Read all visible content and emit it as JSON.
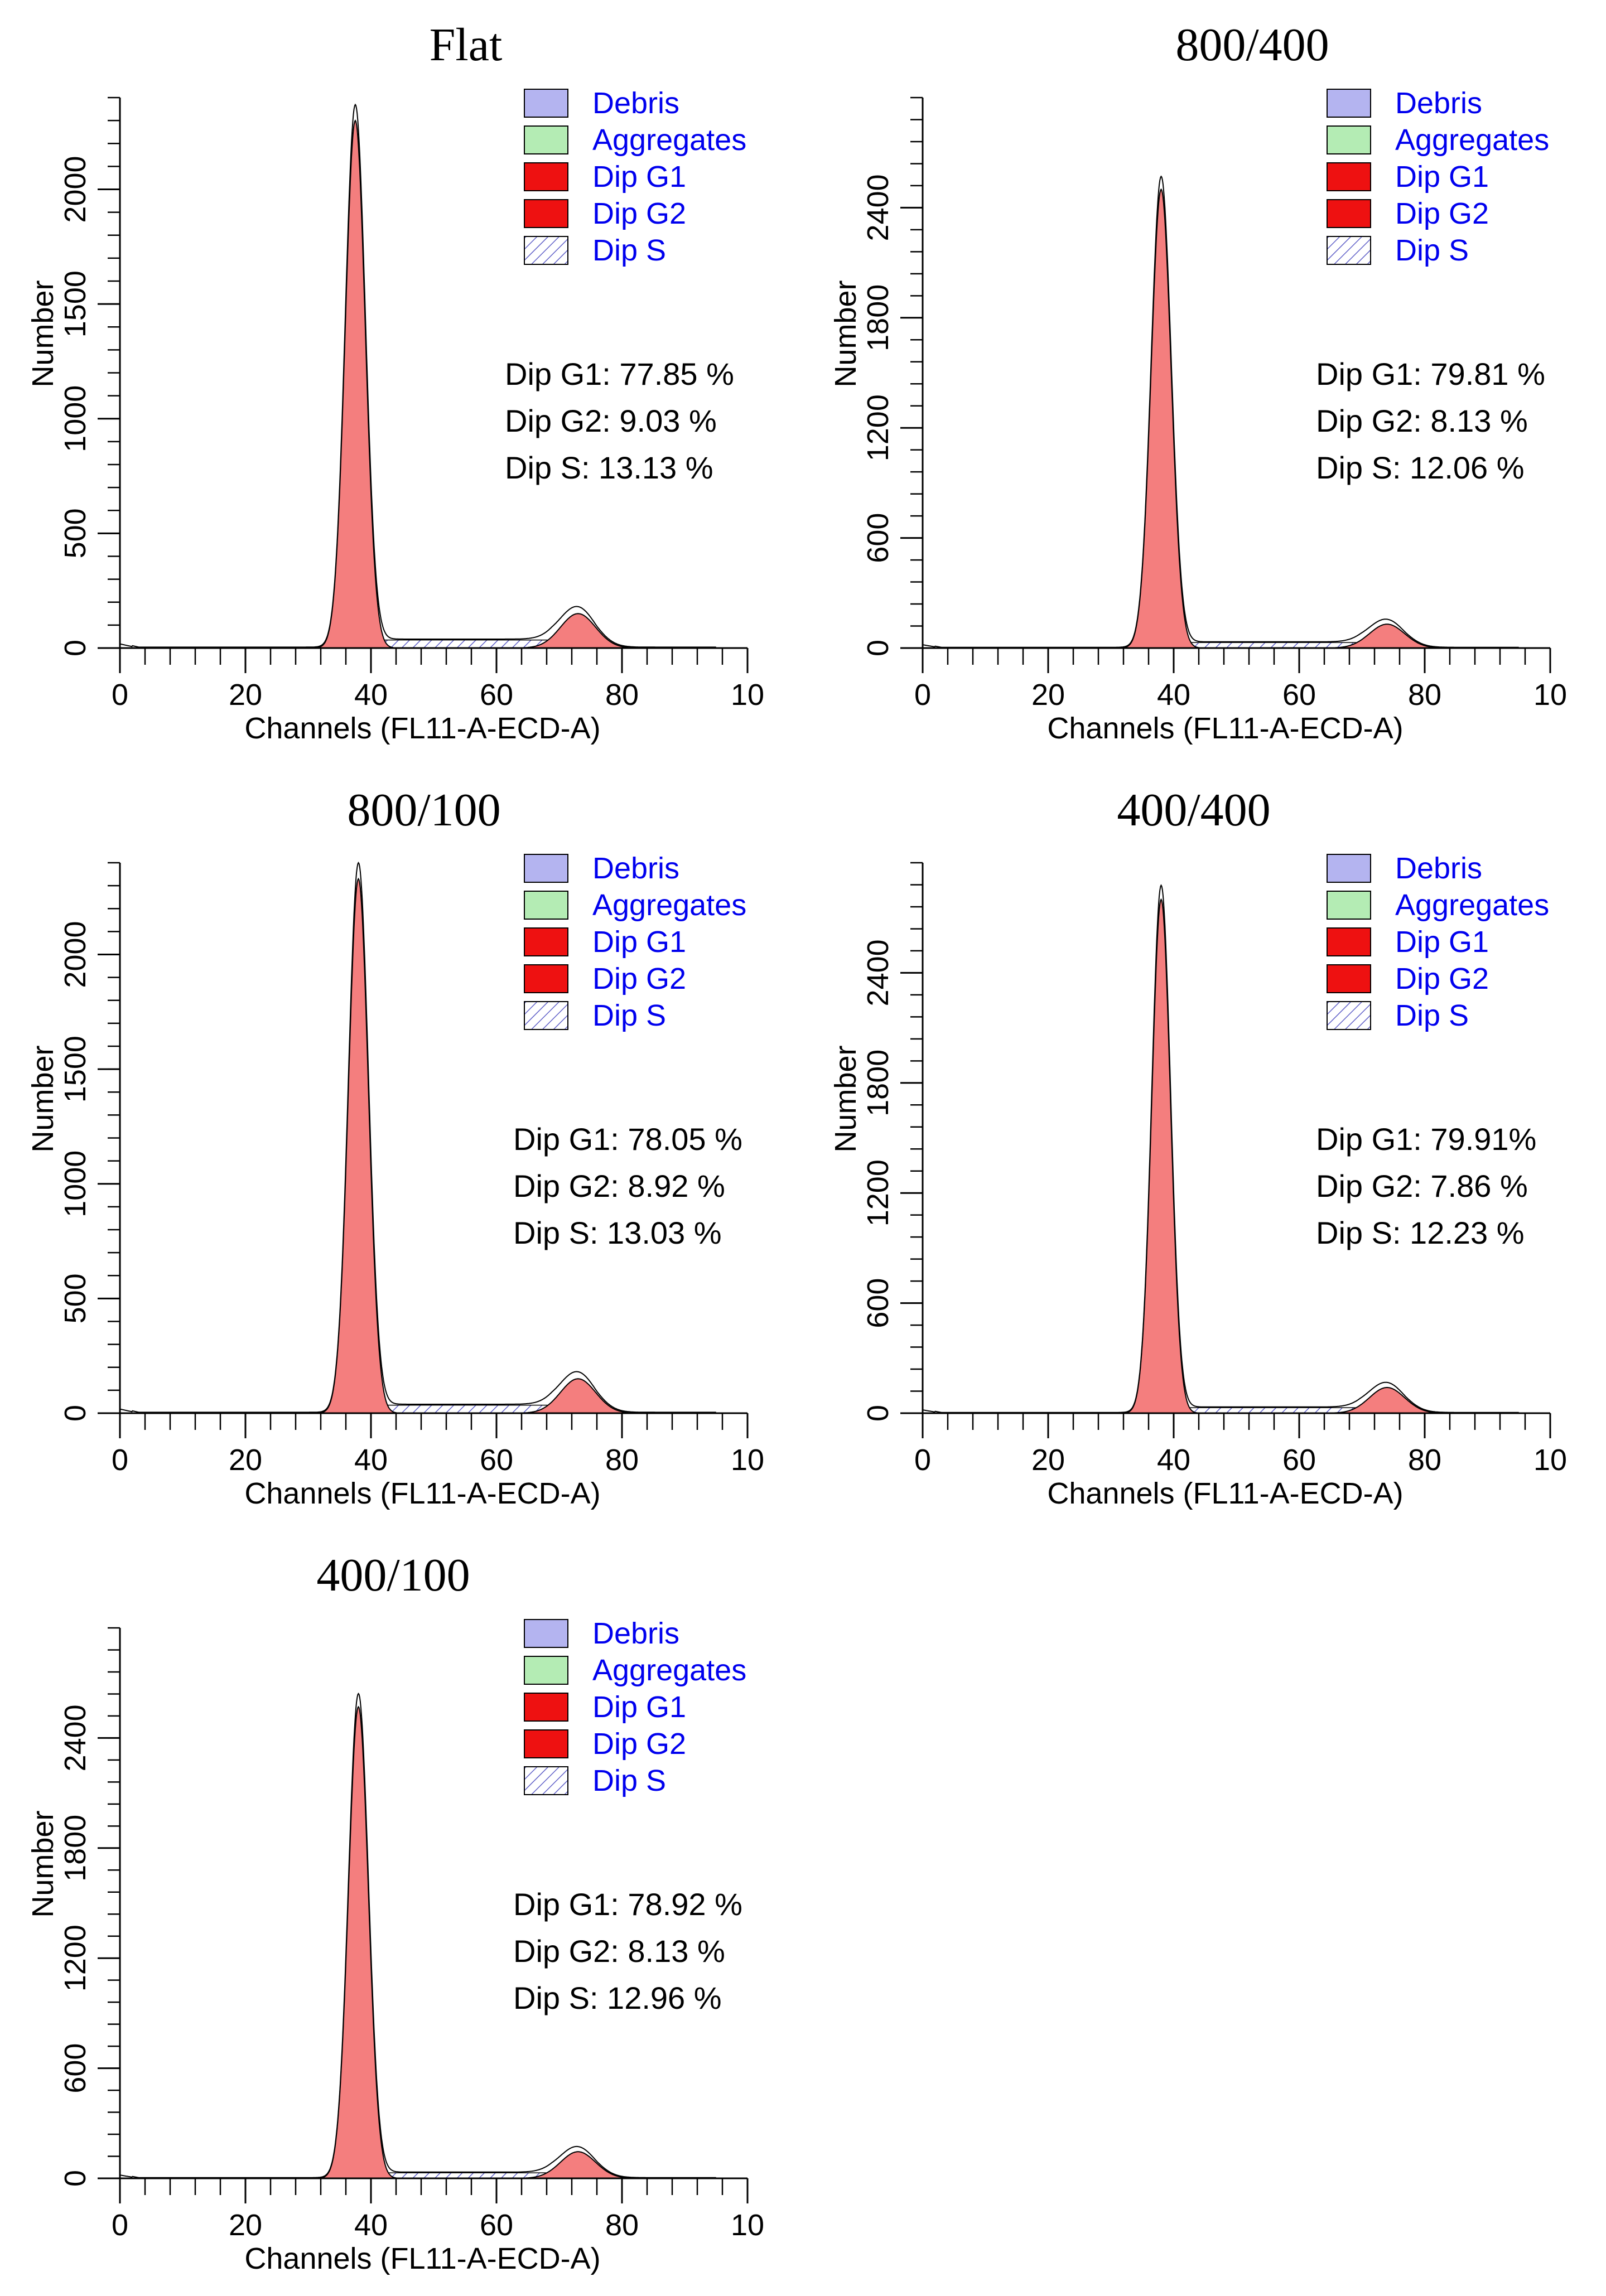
{
  "figure": {
    "domain": "flow cytometry cell cycle histograms"
  },
  "legend_items": [
    {
      "name": "Debris",
      "color": "#b4b4f0",
      "pattern": "solid"
    },
    {
      "name": "Aggregates",
      "color": "#b4ecb4",
      "pattern": "solid"
    },
    {
      "name": "Dip G1",
      "color": "#ee1111",
      "pattern": "solid"
    },
    {
      "name": "Dip G2",
      "color": "#ee1111",
      "pattern": "solid"
    },
    {
      "name": "Dip S",
      "color": "#3030c0",
      "pattern": "hatch"
    }
  ],
  "colors": {
    "g1_fill": "#f47e7e",
    "g2_fill": "#f47e7e",
    "s_hatch": "#6060c8",
    "outline": "#000000",
    "legend_text": "#0000ee"
  },
  "chart_data": [
    {
      "type": "area",
      "title": "Flat",
      "xlabel": "Channels (FL11-A-ECD-A)",
      "ylabel": "Number",
      "x_ticks": [
        "0",
        "20",
        "40",
        "60",
        "80",
        "10"
      ],
      "xlim": [
        0,
        100
      ],
      "y_ticks": [
        0,
        500,
        1000,
        1500,
        2000
      ],
      "ylim": [
        0,
        2400
      ],
      "g1": {
        "mean": 37.5,
        "sd": 1.6,
        "peak": 2300
      },
      "g2": {
        "mean": 73.0,
        "sd": 2.8,
        "peak": 150
      },
      "s_level": 35,
      "stats": [
        {
          "label": "Dip G1: 77.85 %",
          "value": 77.85
        },
        {
          "label": "Dip G2: 9.03 %",
          "value": 9.03
        },
        {
          "label": "Dip S: 13.13 %",
          "value": 13.13
        }
      ]
    },
    {
      "type": "area",
      "title": "800/400",
      "xlabel": "Channels (FL11-A-ECD-A)",
      "ylabel": "Number",
      "x_ticks": [
        "0",
        "20",
        "40",
        "60",
        "80",
        "10"
      ],
      "xlim": [
        0,
        100
      ],
      "y_ticks": [
        0,
        600,
        1200,
        1800,
        2400
      ],
      "ylim": [
        0,
        3000
      ],
      "g1": {
        "mean": 38.0,
        "sd": 1.6,
        "peak": 2500
      },
      "g2": {
        "mean": 74.0,
        "sd": 2.8,
        "peak": 130
      },
      "s_level": 30,
      "stats": [
        {
          "label": "Dip G1: 79.81 %",
          "value": 79.81
        },
        {
          "label": "Dip G2: 8.13 %",
          "value": 8.13
        },
        {
          "label": "Dip S: 12.06 %",
          "value": 12.06
        }
      ]
    },
    {
      "type": "area",
      "title": "800/100",
      "xlabel": "Channels (FL11-A-ECD-A)",
      "ylabel": "Number",
      "x_ticks": [
        "0",
        "20",
        "40",
        "60",
        "80",
        "10"
      ],
      "xlim": [
        0,
        100
      ],
      "y_ticks": [
        0,
        500,
        1000,
        1500,
        2000
      ],
      "ylim": [
        0,
        2400
      ],
      "g1": {
        "mean": 38.0,
        "sd": 1.6,
        "peak": 2330
      },
      "g2": {
        "mean": 73.0,
        "sd": 2.8,
        "peak": 150
      },
      "s_level": 35,
      "stats": [
        {
          "label": "Dip G1: 78.05 %",
          "value": 78.05
        },
        {
          "label": "Dip G2: 8.92 %",
          "value": 8.92
        },
        {
          "label": "Dip S: 13.03 %",
          "value": 13.03
        }
      ]
    },
    {
      "type": "area",
      "title": "400/400",
      "xlabel": "Channels (FL11-A-ECD-A)",
      "ylabel": "Number",
      "x_ticks": [
        "0",
        "20",
        "40",
        "60",
        "80",
        "10"
      ],
      "xlim": [
        0,
        100
      ],
      "y_ticks": [
        0,
        600,
        1200,
        1800,
        2400
      ],
      "ylim": [
        0,
        3000
      ],
      "g1": {
        "mean": 38.0,
        "sd": 1.5,
        "peak": 2800
      },
      "g2": {
        "mean": 74.0,
        "sd": 2.8,
        "peak": 140
      },
      "s_level": 30,
      "stats": [
        {
          "label": "Dip G1: 79.91%",
          "value": 79.91
        },
        {
          "label": "Dip G2: 7.86 %",
          "value": 7.86
        },
        {
          "label": "Dip S: 12.23 %",
          "value": 12.23
        }
      ]
    },
    {
      "type": "area",
      "title": "400/100",
      "xlabel": "Channels (FL11-A-ECD-A)",
      "ylabel": "Number",
      "x_ticks": [
        "0",
        "20",
        "40",
        "60",
        "80",
        "10"
      ],
      "xlim": [
        0,
        100
      ],
      "y_ticks": [
        0,
        600,
        1200,
        1800,
        2400
      ],
      "ylim": [
        0,
        3000
      ],
      "g1": {
        "mean": 38.0,
        "sd": 1.6,
        "peak": 2570
      },
      "g2": {
        "mean": 73.0,
        "sd": 2.8,
        "peak": 145
      },
      "s_level": 30,
      "stats": [
        {
          "label": "Dip G1: 78.92 %",
          "value": 78.92
        },
        {
          "label": "Dip G2: 8.13 %",
          "value": 8.13
        },
        {
          "label": "Dip S: 12.96 %",
          "value": 12.96
        }
      ]
    }
  ]
}
